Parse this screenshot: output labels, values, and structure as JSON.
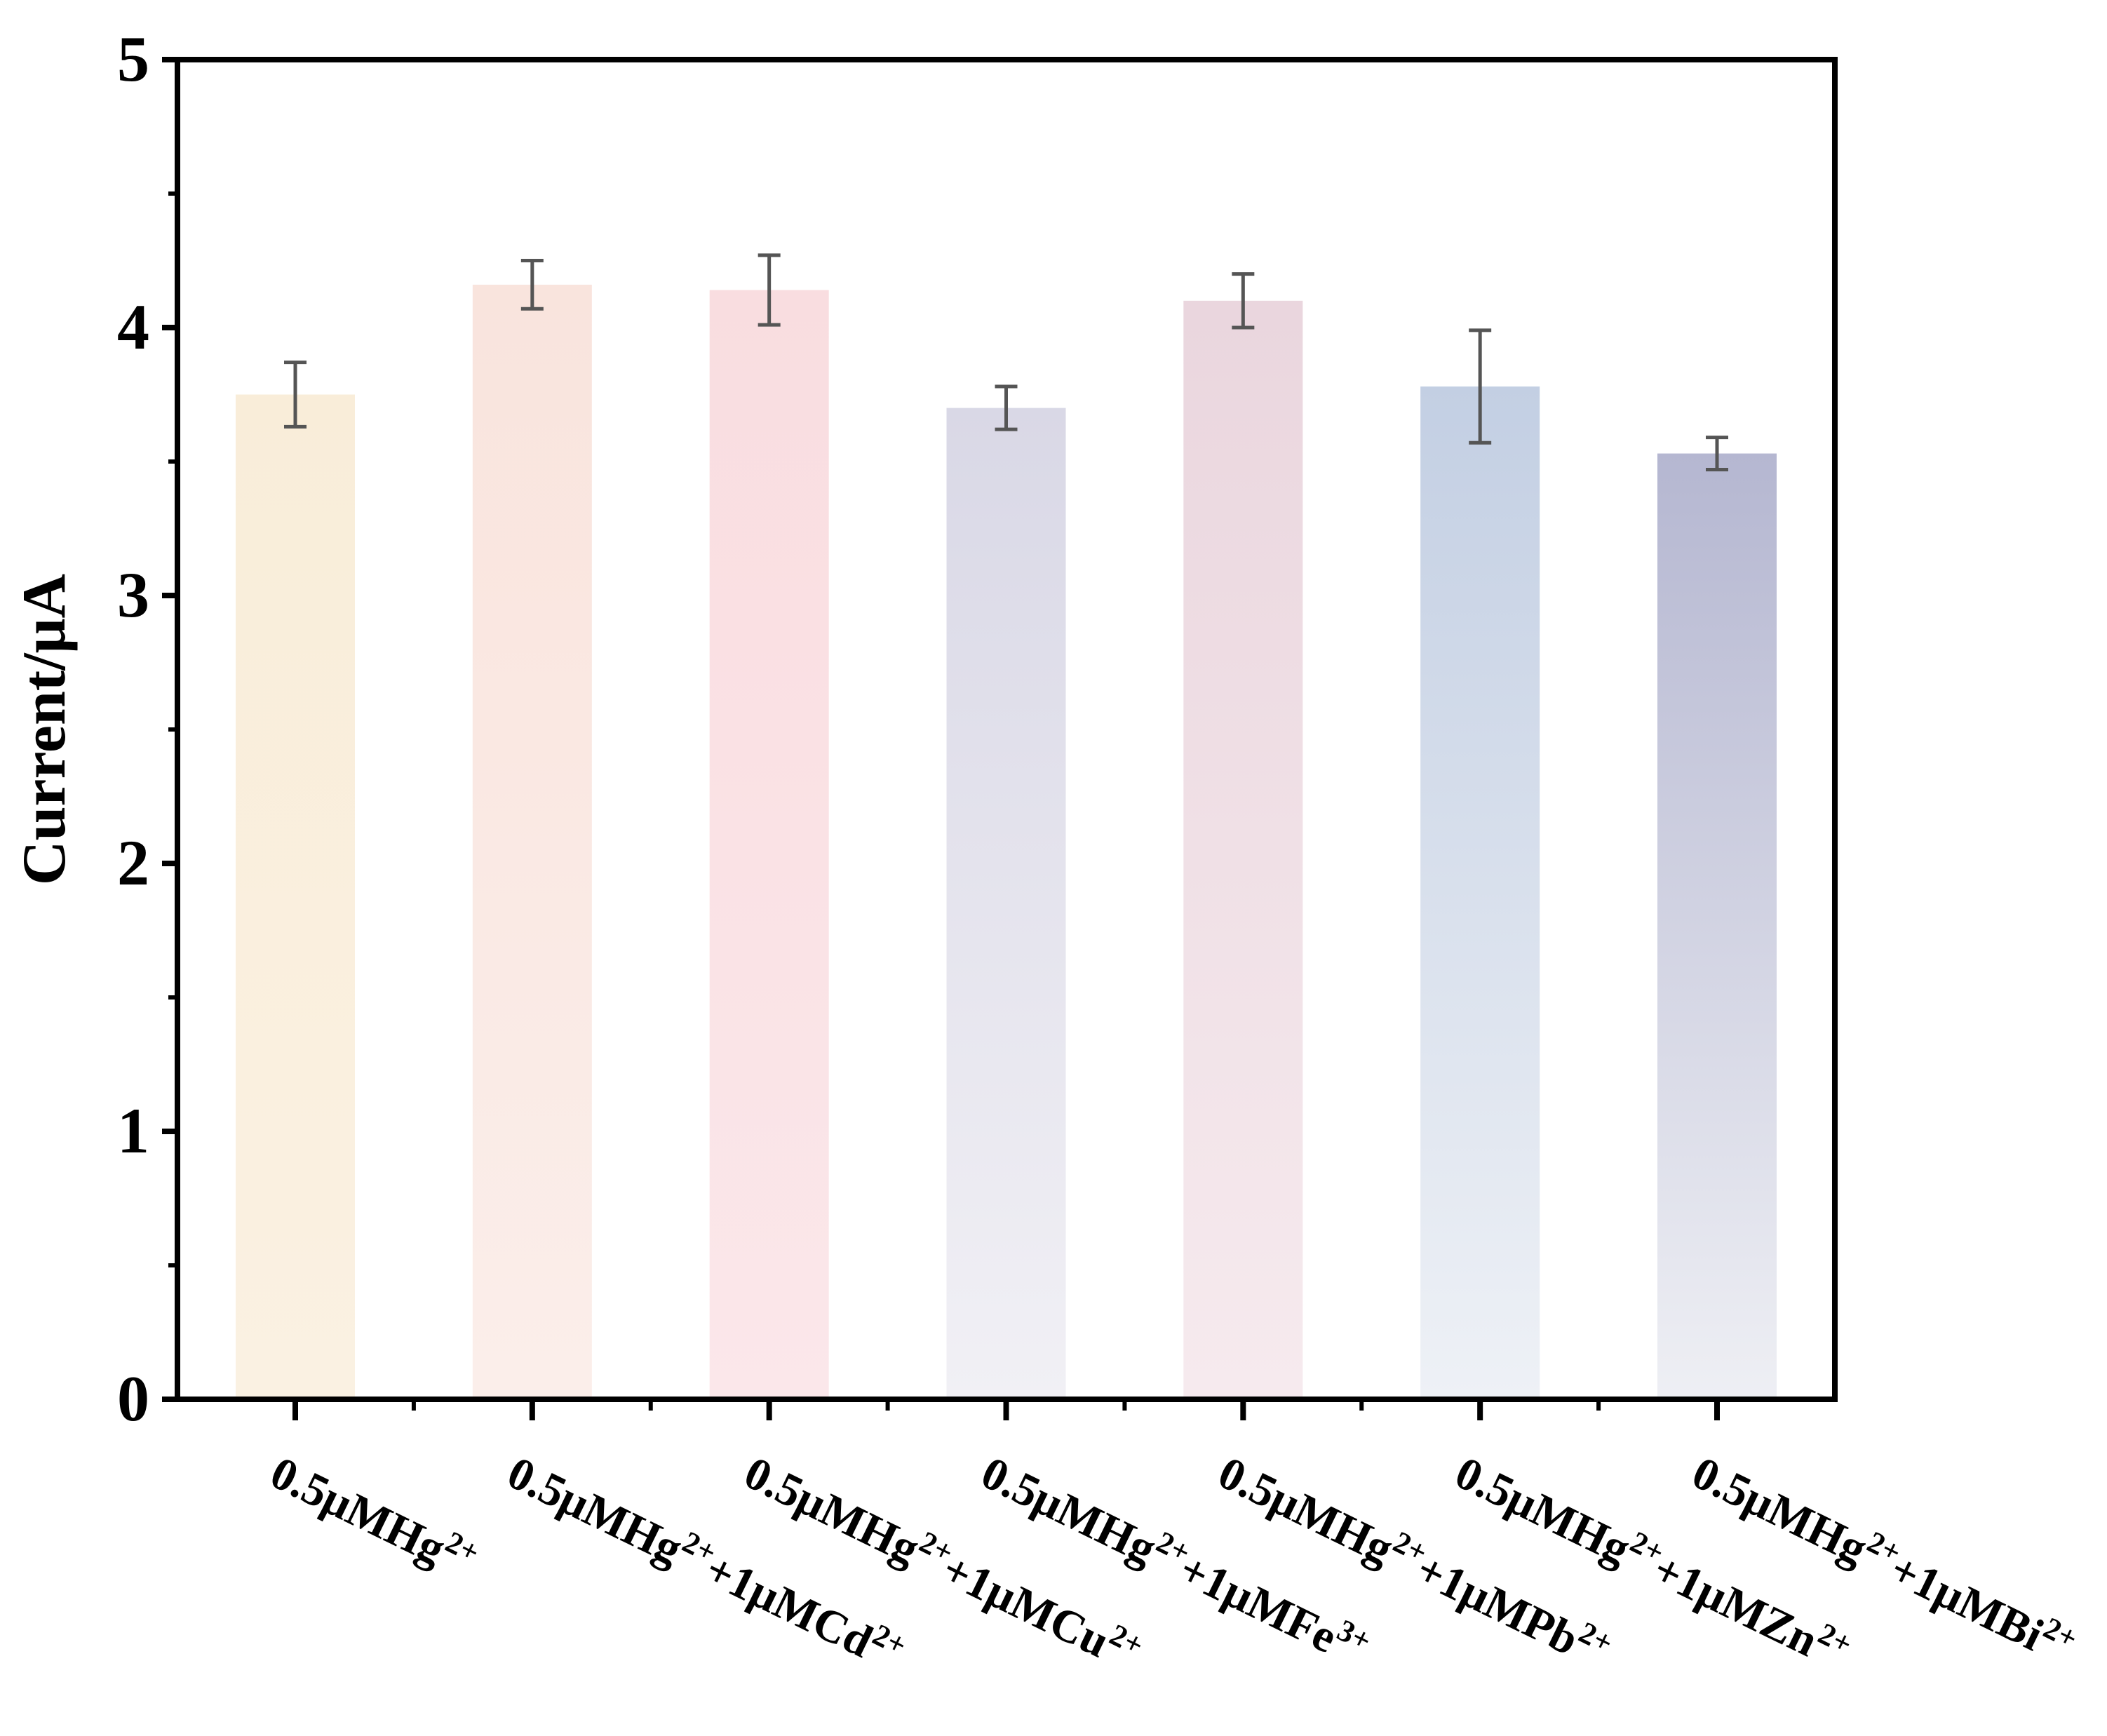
{
  "chart_data": {
    "type": "bar",
    "title": "",
    "xlabel": "",
    "ylabel": "Current/μA",
    "ylim": [
      0,
      5
    ],
    "yticks": [
      "0",
      "1",
      "2",
      "3",
      "4",
      "5"
    ],
    "grid": false,
    "categories": [
      {
        "base": "0.5μMHg",
        "sup": "2+",
        "ext": "",
        "ext_sup": ""
      },
      {
        "base": "0.5μMHg",
        "sup": "2+",
        "ext": "+1μMCd",
        "ext_sup": "2+"
      },
      {
        "base": "0.5μMHg",
        "sup": "2+",
        "ext": "+1μMCu",
        "ext_sup": "2+"
      },
      {
        "base": "0.5μMHg",
        "sup": "2+",
        "ext": "+1μMFe",
        "ext_sup": "3+"
      },
      {
        "base": "0.5μMHg",
        "sup": "2+",
        "ext": "+1μMPb",
        "ext_sup": "2+"
      },
      {
        "base": "0.5μMHg",
        "sup": "2+",
        "ext": "+1μMZn",
        "ext_sup": "2+"
      },
      {
        "base": "0.5μMHg",
        "sup": "2+",
        "ext": "+1μMBi",
        "ext_sup": "2+"
      }
    ],
    "values": [
      3.75,
      4.16,
      4.14,
      3.7,
      4.1,
      3.78,
      3.53
    ],
    "errors": [
      0.12,
      0.09,
      0.13,
      0.08,
      0.1,
      0.21,
      0.06
    ],
    "colors": [
      {
        "top": "#f9edd9",
        "bottom": "#faf1e2"
      },
      {
        "top": "#f9e4dd",
        "bottom": "#fbeeea"
      },
      {
        "top": "#f9dde0",
        "bottom": "#fbe7ea"
      },
      {
        "top": "#d9d8e6",
        "bottom": "#f1f0f5"
      },
      {
        "top": "#ead6de",
        "bottom": "#f6eaee"
      },
      {
        "top": "#c3cfe3",
        "bottom": "#eef1f6"
      },
      {
        "top": "#b5b7d1",
        "bottom": "#eeeff4"
      }
    ],
    "error_color": "#555555"
  }
}
